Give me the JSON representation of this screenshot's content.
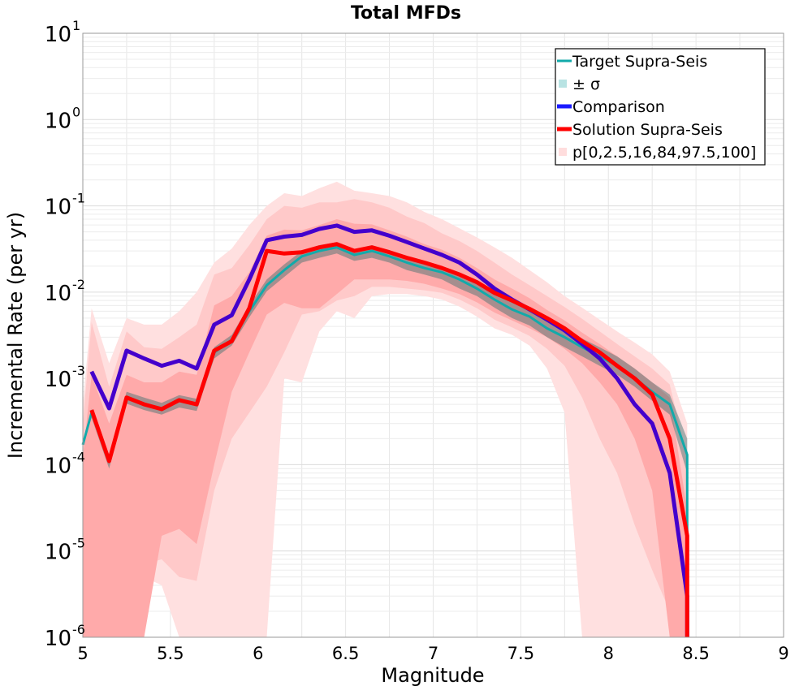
{
  "chart_data": {
    "type": "line",
    "title": "Total MFDs",
    "xlabel": "Magnitude",
    "ylabel": "Incremental Rate (per yr)",
    "xlim": [
      5,
      9
    ],
    "ylim": [
      1e-06,
      10
    ],
    "yscale": "log",
    "grid": true,
    "legend_position": "top-right",
    "xticks": [
      5,
      5.5,
      6,
      6.5,
      7,
      7.5,
      8,
      8.5,
      9
    ],
    "xtick_labels": [
      "5",
      "5.5",
      "6",
      "6.5",
      "7",
      "7.5",
      "8",
      "8.5",
      "9"
    ],
    "ytick_exponents": [
      -6,
      -5,
      -4,
      -3,
      -2,
      -1,
      0,
      1
    ],
    "ytick_base": "10",
    "x": [
      5.05,
      5.15,
      5.25,
      5.35,
      5.45,
      5.55,
      5.65,
      5.75,
      5.85,
      5.95,
      6.05,
      6.15,
      6.25,
      6.35,
      6.45,
      6.55,
      6.65,
      6.75,
      6.85,
      6.95,
      7.05,
      7.15,
      7.25,
      7.35,
      7.45,
      7.55,
      7.65,
      7.75,
      7.85,
      7.95,
      8.05,
      8.15,
      8.25,
      8.35,
      8.45
    ],
    "series": [
      {
        "name": "Target Supra-Seis",
        "color": "#1fb0b0",
        "x": [
          5.0,
          5.05,
          5.15,
          5.25,
          5.35,
          5.45,
          5.55,
          5.65,
          5.75,
          5.85,
          5.95,
          6.05,
          6.15,
          6.25,
          6.35,
          6.45,
          6.55,
          6.65,
          6.75,
          6.85,
          6.95,
          7.05,
          7.15,
          7.25,
          7.35,
          7.45,
          7.55,
          7.65,
          7.75,
          7.85,
          7.95,
          8.05,
          8.15,
          8.25,
          8.35,
          8.45,
          8.45
        ],
        "values": [
          0.00017,
          0.0004,
          0.00011,
          0.0006,
          0.0005,
          0.00045,
          0.00055,
          0.0005,
          0.002,
          0.0028,
          0.006,
          0.012,
          0.018,
          0.026,
          0.03,
          0.033,
          0.027,
          0.03,
          0.026,
          0.022,
          0.019,
          0.017,
          0.014,
          0.011,
          0.0082,
          0.0063,
          0.0052,
          0.0038,
          0.003,
          0.0023,
          0.0018,
          0.0014,
          0.001,
          0.0007,
          0.0005,
          0.00013,
          1e-06
        ]
      },
      {
        "name": "± σ",
        "color": "#b8e3e3",
        "x": [
          5.05,
          5.15,
          5.25,
          5.35,
          5.45,
          5.55,
          5.65,
          5.75,
          5.85,
          5.95,
          6.05,
          6.15,
          6.25,
          6.35,
          6.45,
          6.55,
          6.65,
          6.75,
          6.85,
          6.95,
          7.05,
          7.15,
          7.25,
          7.35,
          7.45,
          7.55,
          7.65,
          7.75,
          7.85,
          7.95,
          8.05,
          8.15,
          8.25,
          8.35,
          8.45
        ],
        "upper": [
          0.00045,
          0.00013,
          0.0007,
          0.0006,
          0.00052,
          0.00064,
          0.00058,
          0.0023,
          0.0032,
          0.007,
          0.014,
          0.021,
          0.03,
          0.035,
          0.038,
          0.031,
          0.035,
          0.03,
          0.026,
          0.022,
          0.02,
          0.017,
          0.013,
          0.0098,
          0.0076,
          0.0063,
          0.0047,
          0.0037,
          0.0029,
          0.0023,
          0.0018,
          0.0013,
          0.0009,
          0.00065,
          0.0002
        ],
        "lower": [
          0.00035,
          9e-05,
          0.00051,
          0.00043,
          0.00038,
          0.00046,
          0.00042,
          0.0017,
          0.0024,
          0.0051,
          0.0102,
          0.015,
          0.022,
          0.025,
          0.028,
          0.023,
          0.025,
          0.022,
          0.018,
          0.016,
          0.014,
          0.011,
          0.009,
          0.0066,
          0.005,
          0.0041,
          0.003,
          0.0023,
          0.0018,
          0.0014,
          0.0011,
          0.0008,
          0.00055,
          0.00038,
          8e-05
        ]
      },
      {
        "name": "Comparison",
        "color": "#4400cc",
        "x": [
          5.05,
          5.15,
          5.25,
          5.35,
          5.45,
          5.55,
          5.65,
          5.75,
          5.85,
          5.95,
          6.05,
          6.15,
          6.25,
          6.35,
          6.45,
          6.55,
          6.65,
          6.75,
          6.85,
          6.95,
          7.05,
          7.15,
          7.25,
          7.35,
          7.45,
          7.55,
          7.65,
          7.75,
          7.85,
          7.95,
          8.05,
          8.15,
          8.25,
          8.35,
          8.45,
          8.45
        ],
        "values": [
          0.0012,
          0.00045,
          0.0021,
          0.0017,
          0.0014,
          0.0016,
          0.0013,
          0.0042,
          0.0054,
          0.014,
          0.04,
          0.044,
          0.046,
          0.054,
          0.059,
          0.05,
          0.052,
          0.045,
          0.038,
          0.032,
          0.027,
          0.022,
          0.016,
          0.011,
          0.0082,
          0.0063,
          0.0048,
          0.0036,
          0.0025,
          0.0017,
          0.001,
          0.0005,
          0.0003,
          8e-05,
          3e-06,
          1e-06
        ]
      },
      {
        "name": "Solution Supra-Seis",
        "color": "#ff0000",
        "x": [
          5.05,
          5.15,
          5.25,
          5.35,
          5.45,
          5.55,
          5.65,
          5.75,
          5.85,
          5.95,
          6.05,
          6.15,
          6.25,
          6.35,
          6.45,
          6.55,
          6.65,
          6.75,
          6.85,
          6.95,
          7.05,
          7.15,
          7.25,
          7.35,
          7.45,
          7.55,
          7.65,
          7.75,
          7.85,
          7.95,
          8.05,
          8.15,
          8.25,
          8.35,
          8.45,
          8.45
        ],
        "values": [
          0.00043,
          0.00011,
          0.0006,
          0.0005,
          0.00044,
          0.00056,
          0.0005,
          0.0021,
          0.0027,
          0.0065,
          0.03,
          0.028,
          0.029,
          0.033,
          0.036,
          0.03,
          0.033,
          0.029,
          0.025,
          0.022,
          0.019,
          0.016,
          0.013,
          0.0098,
          0.008,
          0.0064,
          0.005,
          0.0038,
          0.0027,
          0.002,
          0.0014,
          0.001,
          0.00065,
          0.0002,
          1.5e-05,
          1e-06
        ]
      },
      {
        "name": "p[0,2.5,16,84,97.5,100]",
        "color": "#ffdddd",
        "x": [
          5.0,
          5.05,
          5.15,
          5.25,
          5.35,
          5.45,
          5.55,
          5.65,
          5.75,
          5.85,
          5.95,
          6.05,
          6.15,
          6.25,
          6.35,
          6.45,
          6.55,
          6.65,
          6.75,
          6.85,
          6.95,
          7.05,
          7.15,
          7.25,
          7.35,
          7.45,
          7.55,
          7.65,
          7.75,
          7.85,
          7.95,
          8.05,
          8.15,
          8.25,
          8.35,
          8.45
        ],
        "p0": [
          1e-06,
          1e-06,
          1e-06,
          1e-06,
          5e-06,
          4e-06,
          1e-06,
          1e-06,
          1e-06,
          1e-06,
          1e-06,
          1e-06,
          0.001,
          0.0009,
          0.0035,
          0.006,
          0.005,
          0.009,
          0.0095,
          0.0095,
          0.009,
          0.0082,
          0.0068,
          0.0052,
          0.0038,
          0.0032,
          0.0024,
          0.0013,
          0.0004,
          1e-06,
          1e-06,
          1e-06,
          1e-06,
          1e-06,
          1e-06,
          1e-06
        ],
        "p2_5": [
          1e-06,
          1e-06,
          1e-06,
          1e-06,
          7e-06,
          8e-06,
          5e-06,
          4.5e-06,
          5e-05,
          0.0002,
          0.0004,
          0.0008,
          0.002,
          0.0055,
          0.006,
          0.008,
          0.009,
          0.0115,
          0.0115,
          0.011,
          0.0105,
          0.0098,
          0.0082,
          0.0065,
          0.0048,
          0.0039,
          0.0031,
          0.0022,
          0.0014,
          0.0006,
          0.0002,
          8e-05,
          2e-05,
          6e-06,
          2e-06,
          1e-06
        ],
        "p16": [
          1e-06,
          1e-06,
          1e-06,
          1e-06,
          1e-06,
          1.5e-05,
          1.8e-05,
          1.2e-05,
          0.0001,
          0.0007,
          0.002,
          0.0055,
          0.0075,
          0.0065,
          0.0065,
          0.0095,
          0.014,
          0.014,
          0.014,
          0.0135,
          0.0125,
          0.011,
          0.0095,
          0.0076,
          0.0058,
          0.0047,
          0.0038,
          0.003,
          0.0022,
          0.0015,
          0.0009,
          0.0005,
          0.0002,
          5e-05,
          1e-06,
          1e-06
        ],
        "p84": [
          0.00012,
          0.0011,
          0.0003,
          0.0011,
          0.0009,
          0.0009,
          0.0012,
          0.0011,
          0.007,
          0.009,
          0.017,
          0.045,
          0.053,
          0.052,
          0.06,
          0.07,
          0.062,
          0.061,
          0.052,
          0.044,
          0.036,
          0.031,
          0.025,
          0.019,
          0.014,
          0.011,
          0.0085,
          0.0062,
          0.0047,
          0.0034,
          0.0025,
          0.0018,
          0.0013,
          0.0009,
          0.0006,
          3e-05
        ],
        "p97_5": [
          0.0003,
          0.0045,
          0.0008,
          0.0035,
          0.0023,
          0.0022,
          0.003,
          0.0042,
          0.016,
          0.019,
          0.035,
          0.07,
          0.1,
          0.095,
          0.11,
          0.11,
          0.12,
          0.11,
          0.095,
          0.075,
          0.063,
          0.048,
          0.039,
          0.03,
          0.022,
          0.016,
          0.012,
          0.009,
          0.0067,
          0.0049,
          0.0035,
          0.0025,
          0.0018,
          0.0013,
          0.00085,
          0.00012
        ],
        "p100": [
          0.0005,
          0.0065,
          0.0015,
          0.005,
          0.0042,
          0.0042,
          0.006,
          0.01,
          0.022,
          0.032,
          0.06,
          0.1,
          0.14,
          0.13,
          0.16,
          0.19,
          0.15,
          0.14,
          0.13,
          0.11,
          0.085,
          0.07,
          0.055,
          0.043,
          0.033,
          0.025,
          0.018,
          0.013,
          0.009,
          0.0066,
          0.0048,
          0.0035,
          0.0026,
          0.0019,
          0.0012,
          0.0003
        ]
      }
    ]
  }
}
